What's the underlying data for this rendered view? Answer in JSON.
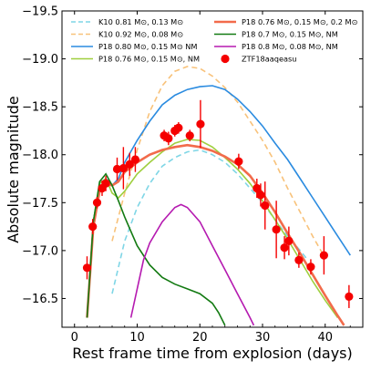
{
  "chart_data": {
    "type": "line",
    "xlabel": "Rest frame time from explosion (days)",
    "ylabel": "Absolute magnitude",
    "xlim": [
      -2,
      46
    ],
    "ylim": [
      -16.2,
      -19.5
    ],
    "y_inverted": true,
    "xticks": [
      0,
      10,
      20,
      30,
      40
    ],
    "yticks": [
      -19.5,
      -19.0,
      -18.5,
      -18.0,
      -17.5,
      -17.0,
      -16.5
    ],
    "ytick_labels": [
      "−19.5",
      "−19.0",
      "−18.5",
      "−18.0",
      "−17.5",
      "−17.0",
      "−16.5"
    ],
    "grid": false,
    "legend_position": "top",
    "series": [
      {
        "name": "K10 0.81 M⊙, 0.13 M⊙",
        "color": "#7fd6e6",
        "dash": "dashed",
        "points": [
          [
            6,
            -16.55
          ],
          [
            8,
            -17.1
          ],
          [
            10,
            -17.45
          ],
          [
            12,
            -17.7
          ],
          [
            14,
            -17.88
          ],
          [
            16,
            -17.97
          ],
          [
            18,
            -18.03
          ],
          [
            20,
            -18.05
          ],
          [
            22,
            -18.0
          ],
          [
            24,
            -17.92
          ],
          [
            26,
            -17.8
          ],
          [
            28,
            -17.65
          ],
          [
            30,
            -17.5
          ],
          [
            32,
            -17.32
          ],
          [
            34,
            -17.15
          ],
          [
            36,
            -17.0
          ],
          [
            37,
            -16.92
          ]
        ]
      },
      {
        "name": "K10 0.92 M⊙, 0.08 M⊙",
        "color": "#f8c27a",
        "dash": "dashed",
        "points": [
          [
            6,
            -17.1
          ],
          [
            8,
            -17.6
          ],
          [
            10,
            -18.05
          ],
          [
            12,
            -18.45
          ],
          [
            14,
            -18.72
          ],
          [
            16,
            -18.87
          ],
          [
            18,
            -18.92
          ],
          [
            20,
            -18.9
          ],
          [
            22,
            -18.82
          ],
          [
            24,
            -18.7
          ],
          [
            26,
            -18.55
          ],
          [
            28,
            -18.35
          ],
          [
            30,
            -18.15
          ],
          [
            32,
            -17.92
          ],
          [
            34,
            -17.65
          ],
          [
            36,
            -17.4
          ],
          [
            38,
            -17.15
          ],
          [
            40,
            -16.92
          ]
        ]
      },
      {
        "name": "P18 0.80 M⊙, 0.15 M⊙ NM",
        "color": "#2a8be0",
        "dash": "solid",
        "points": [
          [
            2,
            -16.3
          ],
          [
            3,
            -17.3
          ],
          [
            4,
            -17.7
          ],
          [
            5,
            -17.75
          ],
          [
            6,
            -17.68
          ],
          [
            7,
            -17.75
          ],
          [
            8,
            -17.92
          ],
          [
            10,
            -18.15
          ],
          [
            12,
            -18.35
          ],
          [
            14,
            -18.52
          ],
          [
            16,
            -18.62
          ],
          [
            18,
            -18.68
          ],
          [
            20,
            -18.71
          ],
          [
            22,
            -18.72
          ],
          [
            24,
            -18.68
          ],
          [
            26,
            -18.58
          ],
          [
            28,
            -18.45
          ],
          [
            30,
            -18.3
          ],
          [
            32,
            -18.12
          ],
          [
            34,
            -17.95
          ],
          [
            36,
            -17.75
          ],
          [
            38,
            -17.55
          ],
          [
            40,
            -17.35
          ],
          [
            42,
            -17.15
          ],
          [
            44,
            -16.95
          ]
        ]
      },
      {
        "name": "P18 0.76 M⊙, 0.15 M⊙, NM",
        "color": "#9fcf3e",
        "dash": "solid",
        "points": [
          [
            2,
            -16.3
          ],
          [
            3,
            -17.3
          ],
          [
            4,
            -17.7
          ],
          [
            5,
            -17.75
          ],
          [
            6,
            -17.6
          ],
          [
            7,
            -17.55
          ],
          [
            8,
            -17.62
          ],
          [
            10,
            -17.8
          ],
          [
            12,
            -17.92
          ],
          [
            14,
            -18.03
          ],
          [
            16,
            -18.12
          ],
          [
            18,
            -18.16
          ],
          [
            20,
            -18.15
          ],
          [
            22,
            -18.08
          ],
          [
            24,
            -17.97
          ],
          [
            26,
            -17.85
          ],
          [
            28,
            -17.7
          ],
          [
            30,
            -17.52
          ],
          [
            32,
            -17.32
          ],
          [
            34,
            -17.12
          ],
          [
            36,
            -16.9
          ],
          [
            38,
            -16.68
          ],
          [
            40,
            -16.48
          ],
          [
            42,
            -16.3
          ]
        ]
      },
      {
        "name": "P18 0.76 M⊙, 0.15 M⊙, 0.2 M⊙",
        "color": "#f26b4b",
        "dash": "solid",
        "points": [
          [
            2,
            -16.3
          ],
          [
            3,
            -17.25
          ],
          [
            4,
            -17.62
          ],
          [
            5,
            -17.7
          ],
          [
            6,
            -17.68
          ],
          [
            7,
            -17.72
          ],
          [
            8,
            -17.82
          ],
          [
            10,
            -17.92
          ],
          [
            12,
            -18.0
          ],
          [
            14,
            -18.05
          ],
          [
            16,
            -18.08
          ],
          [
            18,
            -18.1
          ],
          [
            20,
            -18.08
          ],
          [
            22,
            -18.04
          ],
          [
            24,
            -17.98
          ],
          [
            26,
            -17.9
          ],
          [
            28,
            -17.78
          ],
          [
            30,
            -17.6
          ],
          [
            32,
            -17.4
          ],
          [
            34,
            -17.18
          ],
          [
            36,
            -16.97
          ],
          [
            38,
            -16.75
          ],
          [
            40,
            -16.53
          ],
          [
            42,
            -16.32
          ],
          [
            43,
            -16.22
          ]
        ]
      },
      {
        "name": "P18 0.7 M⊙, 0.15 M⊙, NM",
        "color": "#137a12",
        "dash": "solid",
        "points": [
          [
            2,
            -16.3
          ],
          [
            3,
            -17.3
          ],
          [
            4,
            -17.72
          ],
          [
            5,
            -17.8
          ],
          [
            6,
            -17.68
          ],
          [
            7,
            -17.52
          ],
          [
            8,
            -17.35
          ],
          [
            9,
            -17.2
          ],
          [
            10,
            -17.05
          ],
          [
            12,
            -16.85
          ],
          [
            14,
            -16.72
          ],
          [
            16,
            -16.65
          ],
          [
            18,
            -16.6
          ],
          [
            20,
            -16.55
          ],
          [
            22,
            -16.45
          ],
          [
            23,
            -16.35
          ],
          [
            24,
            -16.22
          ]
        ]
      },
      {
        "name": "P18 0.8 M⊙, 0.08 M⊙, NM",
        "color": "#b51ab0",
        "dash": "solid",
        "points": [
          [
            9,
            -16.3
          ],
          [
            10,
            -16.6
          ],
          [
            11,
            -16.9
          ],
          [
            12,
            -17.08
          ],
          [
            14,
            -17.3
          ],
          [
            16,
            -17.45
          ],
          [
            17,
            -17.48
          ],
          [
            18,
            -17.45
          ],
          [
            20,
            -17.3
          ],
          [
            22,
            -17.05
          ],
          [
            24,
            -16.8
          ],
          [
            26,
            -16.55
          ],
          [
            28,
            -16.3
          ],
          [
            28.6,
            -16.22
          ]
        ]
      }
    ],
    "observed": {
      "name": "ZTF18aaqeasu",
      "color": "#f50000",
      "points": [
        {
          "x": 2.0,
          "y": -16.82,
          "err": 0.12
        },
        {
          "x": 2.9,
          "y": -17.25,
          "err": 0.08
        },
        {
          "x": 3.6,
          "y": -17.5,
          "err": 0.06
        },
        {
          "x": 4.4,
          "y": -17.65,
          "err": 0.08
        },
        {
          "x": 5.0,
          "y": -17.7,
          "err": 0.08
        },
        {
          "x": 6.8,
          "y": -17.85,
          "err": 0.12
        },
        {
          "x": 7.8,
          "y": -17.86,
          "err": 0.22
        },
        {
          "x": 8.8,
          "y": -17.9,
          "err": 0.12
        },
        {
          "x": 9.7,
          "y": -17.95,
          "err": 0.13
        },
        {
          "x": 14.3,
          "y": -18.2,
          "err": 0.06
        },
        {
          "x": 15.0,
          "y": -18.17,
          "err": 0.07
        },
        {
          "x": 16.0,
          "y": -18.25,
          "err": 0.06
        },
        {
          "x": 16.6,
          "y": -18.28,
          "err": 0.06
        },
        {
          "x": 18.4,
          "y": -18.2,
          "err": 0.06
        },
        {
          "x": 20.1,
          "y": -18.32,
          "err": 0.25
        },
        {
          "x": 26.2,
          "y": -17.93,
          "err": 0.08
        },
        {
          "x": 29.1,
          "y": -17.65,
          "err": 0.1
        },
        {
          "x": 29.7,
          "y": -17.58,
          "err": 0.12
        },
        {
          "x": 30.4,
          "y": -17.47,
          "err": 0.25
        },
        {
          "x": 32.2,
          "y": -17.22,
          "err": 0.3
        },
        {
          "x": 33.5,
          "y": -17.03,
          "err": 0.12
        },
        {
          "x": 34.2,
          "y": -17.1,
          "err": 0.15
        },
        {
          "x": 35.8,
          "y": -16.9,
          "err": 0.08
        },
        {
          "x": 37.7,
          "y": -16.83,
          "err": 0.08
        },
        {
          "x": 39.8,
          "y": -16.95,
          "err": 0.2
        },
        {
          "x": 43.8,
          "y": -16.52,
          "err": 0.12
        }
      ]
    }
  }
}
